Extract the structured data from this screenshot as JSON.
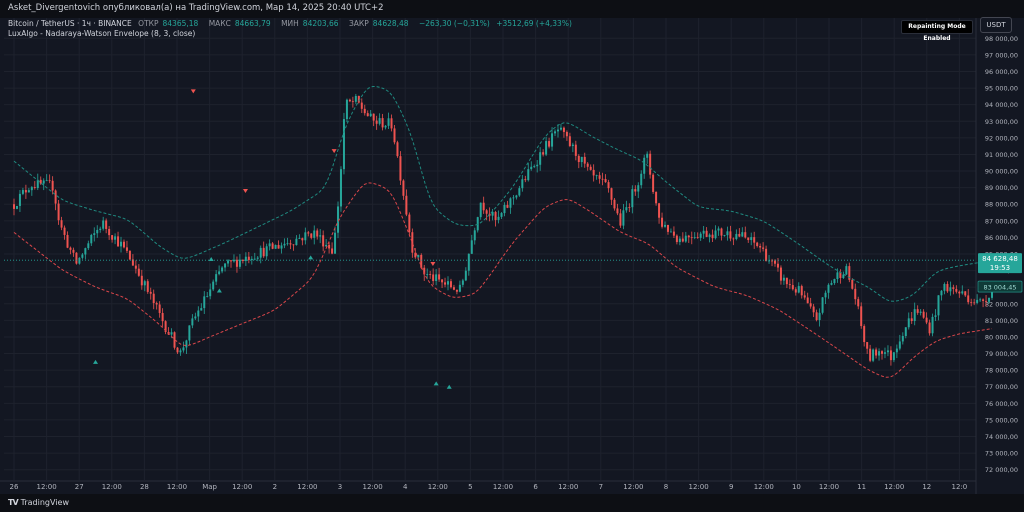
{
  "header": {
    "published": "Asket_Divergentovich опубликовал(а) на TradingView.com, Мар 14, 2025 20:40 UTC+2"
  },
  "legend": {
    "symbol": "Bitcoin / TetherUS · 1ч · BINANCE",
    "open_label": "ОТКР",
    "open_value": "84365,18",
    "high_label": "МАКС",
    "high_value": "84663,79",
    "low_label": "МИН",
    "low_value": "84203,66",
    "close_label": "ЗАКР",
    "close_value": "84628,48",
    "change": "−263,30 (−0,31%)",
    "volume_change": "+3512,69 (+4,33%)",
    "indicator": "LuxAlgo - Nadaraya-Watson Envelope (8, 3, close)"
  },
  "badge": "Repainting Mode Enabled",
  "currency": "USDT",
  "footer": {
    "brand": "TradingView"
  },
  "colors": {
    "background": "#131722",
    "up": "#26a69a",
    "down": "#ef5350",
    "grid": "#1e222d",
    "axis_text": "#b2b5be",
    "upper_band": "#1f8a80",
    "lower_band": "#d9464a"
  },
  "chart_data": {
    "type": "candlestick",
    "title": "Bitcoin / TetherUS · 1ч · BINANCE",
    "ylim": [
      71500,
      98500
    ],
    "yticks": [
      72000,
      73000,
      74000,
      75000,
      76000,
      77000,
      78000,
      79000,
      80000,
      81000,
      82000,
      83000,
      84000,
      85000,
      86000,
      87000,
      88000,
      89000,
      90000,
      91000,
      92000,
      93000,
      94000,
      95000,
      96000,
      97000,
      98000
    ],
    "ytick_labels": [
      "72 000,00",
      "73 000,00",
      "74 000,00",
      "75 000,00",
      "76 000,00",
      "77 000,00",
      "78 000,00",
      "79 000,00",
      "80 000,00",
      "81 000,00",
      "82 000,00",
      "83 000,00",
      "84 000,00",
      "85 000,00",
      "86 000,00",
      "87 000,00",
      "88 000,00",
      "89 000,00",
      "90 000,00",
      "91 000,00",
      "92 000,00",
      "93 000,00",
      "94 000,00",
      "95 000,00",
      "96 000,00",
      "97 000,00",
      "98 000,00"
    ],
    "xticks": [
      "26",
      "12:00",
      "27",
      "12:00",
      "28",
      "12:00",
      "Мар",
      "12:00",
      "2",
      "12:00",
      "3",
      "12:00",
      "4",
      "12:00",
      "5",
      "12:00",
      "6",
      "12:00",
      "7",
      "12:00",
      "8",
      "12:00",
      "9",
      "12:00",
      "10",
      "12:00",
      "11",
      "12:00",
      "12",
      "12:0"
    ],
    "price_anchors": [
      [
        0,
        88000
      ],
      [
        0.5,
        89200
      ],
      [
        1.2,
        89100
      ],
      [
        1.4,
        86800
      ],
      [
        1.9,
        84400
      ],
      [
        2.7,
        86900
      ],
      [
        3.3,
        85500
      ],
      [
        3.7,
        84300
      ],
      [
        4.5,
        81200
      ],
      [
        5.1,
        79000
      ],
      [
        5.5,
        81000
      ],
      [
        6.4,
        84200
      ],
      [
        7.1,
        84800
      ],
      [
        8.1,
        85500
      ],
      [
        9.2,
        86300
      ],
      [
        9.8,
        85200
      ],
      [
        10.0,
        89200
      ],
      [
        10.15,
        94000
      ],
      [
        10.5,
        94200
      ],
      [
        11.0,
        93000
      ],
      [
        11.6,
        92800
      ],
      [
        12.0,
        88000
      ],
      [
        12.2,
        85500
      ],
      [
        12.6,
        83800
      ],
      [
        13.2,
        83200
      ],
      [
        13.7,
        82800
      ],
      [
        14.3,
        88200
      ],
      [
        14.8,
        86900
      ],
      [
        15.5,
        89000
      ],
      [
        16.2,
        91200
      ],
      [
        16.7,
        92500
      ],
      [
        17.2,
        91200
      ],
      [
        17.7,
        89700
      ],
      [
        18.2,
        89000
      ],
      [
        18.6,
        86900
      ],
      [
        19.1,
        89200
      ],
      [
        19.4,
        91000
      ],
      [
        19.8,
        87000
      ],
      [
        20.4,
        85900
      ],
      [
        20.8,
        86200
      ],
      [
        21.4,
        86300
      ],
      [
        22.2,
        86200
      ],
      [
        22.9,
        85400
      ],
      [
        23.6,
        83400
      ],
      [
        24.1,
        82700
      ],
      [
        24.6,
        81000
      ],
      [
        25.0,
        83200
      ],
      [
        25.5,
        84200
      ],
      [
        25.8,
        82400
      ],
      [
        26.2,
        78700
      ],
      [
        26.6,
        79300
      ],
      [
        26.9,
        78800
      ],
      [
        27.3,
        80500
      ],
      [
        27.7,
        81700
      ],
      [
        28.1,
        80500
      ],
      [
        28.5,
        83100
      ],
      [
        29.2,
        82500
      ],
      [
        29.6,
        82000
      ],
      [
        30.0,
        82800
      ]
    ],
    "upper_band": [
      [
        0,
        90600
      ],
      [
        1.5,
        88200
      ],
      [
        2.5,
        87600
      ],
      [
        3.5,
        87100
      ],
      [
        4.5,
        85400
      ],
      [
        5.2,
        84600
      ],
      [
        6.5,
        85700
      ],
      [
        8.5,
        87600
      ],
      [
        9.6,
        89000
      ],
      [
        10.2,
        93000
      ],
      [
        10.9,
        95300
      ],
      [
        11.6,
        94800
      ],
      [
        12.2,
        92200
      ],
      [
        12.8,
        87800
      ],
      [
        13.6,
        86700
      ],
      [
        14.3,
        86700
      ],
      [
        15.3,
        89000
      ],
      [
        16.3,
        92200
      ],
      [
        16.9,
        93100
      ],
      [
        17.7,
        92100
      ],
      [
        18.5,
        91300
      ],
      [
        19.3,
        90600
      ],
      [
        19.9,
        89500
      ],
      [
        21.0,
        87800
      ],
      [
        22.0,
        87600
      ],
      [
        23.0,
        87000
      ],
      [
        24.0,
        85700
      ],
      [
        25.0,
        84300
      ],
      [
        25.6,
        83600
      ],
      [
        26.3,
        82900
      ],
      [
        26.9,
        82000
      ],
      [
        27.6,
        82500
      ],
      [
        28.3,
        84000
      ],
      [
        29.0,
        84300
      ],
      [
        30.0,
        84600
      ]
    ],
    "lower_band": [
      [
        0,
        86300
      ],
      [
        1.5,
        84000
      ],
      [
        2.5,
        83000
      ],
      [
        3.5,
        82300
      ],
      [
        4.5,
        80700
      ],
      [
        5.2,
        79300
      ],
      [
        6.0,
        80000
      ],
      [
        7.0,
        80800
      ],
      [
        8.0,
        81600
      ],
      [
        9.2,
        83600
      ],
      [
        10.0,
        87300
      ],
      [
        10.8,
        89500
      ],
      [
        11.6,
        88800
      ],
      [
        12.2,
        85800
      ],
      [
        12.7,
        83100
      ],
      [
        13.5,
        82300
      ],
      [
        14.2,
        82600
      ],
      [
        15.3,
        85700
      ],
      [
        16.3,
        87900
      ],
      [
        17.0,
        88400
      ],
      [
        17.8,
        87400
      ],
      [
        18.6,
        86300
      ],
      [
        19.5,
        85600
      ],
      [
        20.3,
        84200
      ],
      [
        21.5,
        83000
      ],
      [
        22.5,
        82500
      ],
      [
        23.5,
        81600
      ],
      [
        24.5,
        80300
      ],
      [
        25.4,
        79100
      ],
      [
        26.2,
        78000
      ],
      [
        26.9,
        77400
      ],
      [
        27.6,
        78800
      ],
      [
        28.3,
        79800
      ],
      [
        29.0,
        80200
      ],
      [
        30.0,
        80500
      ]
    ],
    "signals_down": [
      [
        5.5,
        94800
      ],
      [
        7.1,
        88800
      ],
      [
        9.82,
        91200
      ],
      [
        12.85,
        84400
      ]
    ],
    "signals_up": [
      [
        2.5,
        78500
      ],
      [
        6.05,
        84700
      ],
      [
        6.3,
        82800
      ],
      [
        9.1,
        84800
      ],
      [
        12.95,
        77200
      ],
      [
        13.35,
        77000
      ]
    ],
    "current_price": {
      "value": 84628.48,
      "label": "84 628,48",
      "countdown": "19:53"
    },
    "secondary_price": {
      "value": 83004.45,
      "label": "83 004,45"
    }
  }
}
